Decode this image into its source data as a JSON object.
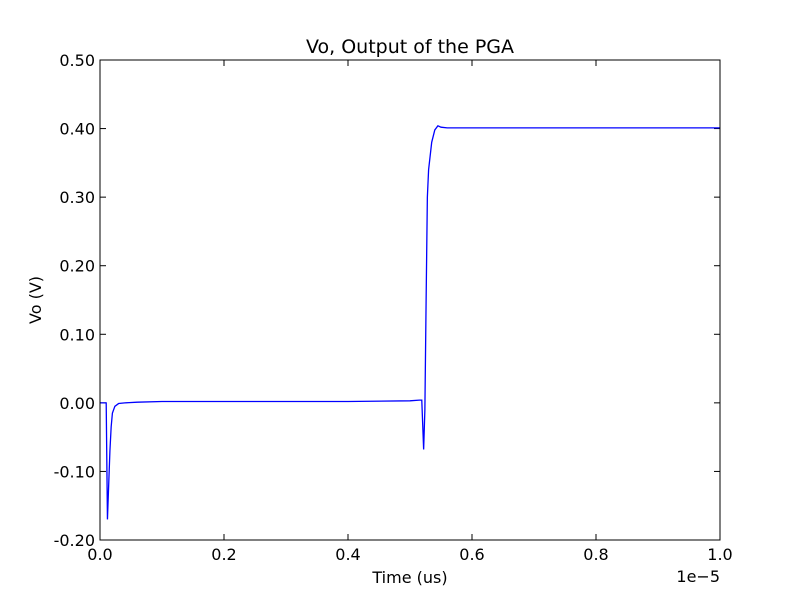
{
  "chart_data": {
    "type": "line",
    "title": "Vo, Output of the PGA",
    "xlabel": "Time (us)",
    "ylabel": "Vo (V)",
    "x_offset_label": "1e−5",
    "xlim": [
      0,
      1.0
    ],
    "ylim": [
      -0.2,
      0.5
    ],
    "x_ticks": [
      0.0,
      0.2,
      0.4,
      0.6,
      0.8,
      1.0
    ],
    "x_tick_labels": [
      "0.0",
      "0.2",
      "0.4",
      "0.6",
      "0.8",
      "1.0"
    ],
    "y_ticks": [
      -0.2,
      -0.1,
      0.0,
      0.1,
      0.2,
      0.3,
      0.4,
      0.5
    ],
    "y_tick_labels": [
      "-0.20",
      "-0.10",
      "0.00",
      "0.10",
      "0.20",
      "0.30",
      "0.40",
      "0.50"
    ],
    "grid": false,
    "line_color": "#0000ff",
    "series": [
      {
        "x": [
          0.0,
          0.01,
          0.012,
          0.014,
          0.016,
          0.018,
          0.02,
          0.024,
          0.03,
          0.04,
          0.06,
          0.1,
          0.2,
          0.3,
          0.4,
          0.5,
          0.515,
          0.519,
          0.522,
          0.524,
          0.526,
          0.528,
          0.53,
          0.535,
          0.54,
          0.545,
          0.55,
          0.56,
          0.6,
          0.8,
          1.0
        ],
        "y": [
          0.0,
          0.0,
          -0.17,
          -0.12,
          -0.07,
          -0.035,
          -0.015,
          -0.005,
          -0.001,
          0.0,
          0.001,
          0.002,
          0.002,
          0.002,
          0.002,
          0.003,
          0.004,
          0.004,
          -0.068,
          -0.01,
          0.15,
          0.3,
          0.34,
          0.38,
          0.398,
          0.404,
          0.402,
          0.401,
          0.401,
          0.401,
          0.401
        ]
      }
    ]
  }
}
